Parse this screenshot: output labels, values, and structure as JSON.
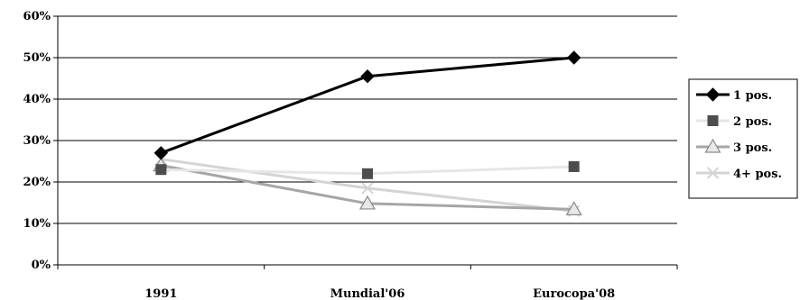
{
  "chart_data": {
    "type": "line",
    "title": "",
    "xlabel": "",
    "ylabel": "",
    "categories": [
      "1991",
      "Mundial'06",
      "Eurocopa'08"
    ],
    "ylim": [
      0,
      60
    ],
    "yticks": [
      0,
      10,
      20,
      30,
      40,
      50,
      60
    ],
    "y_tick_format": "%",
    "grid": "horizontal",
    "legend_position": "right",
    "series": [
      {
        "name": "1 pos.",
        "values": [
          27,
          45.5,
          50
        ],
        "color": "#000000",
        "marker": "diamond"
      },
      {
        "name": "2 pos.",
        "values": [
          23,
          22,
          23.7
        ],
        "color": "#e6e6e6",
        "marker": "square",
        "marker_color": "#4d4d4d"
      },
      {
        "name": "3 pos.",
        "values": [
          24,
          14.8,
          13.4
        ],
        "color": "#a6a6a6",
        "marker": "triangle"
      },
      {
        "name": "4+ pos.",
        "values": [
          25.5,
          18.5,
          13
        ],
        "color": "#d4d4d4",
        "marker": "x"
      }
    ]
  }
}
